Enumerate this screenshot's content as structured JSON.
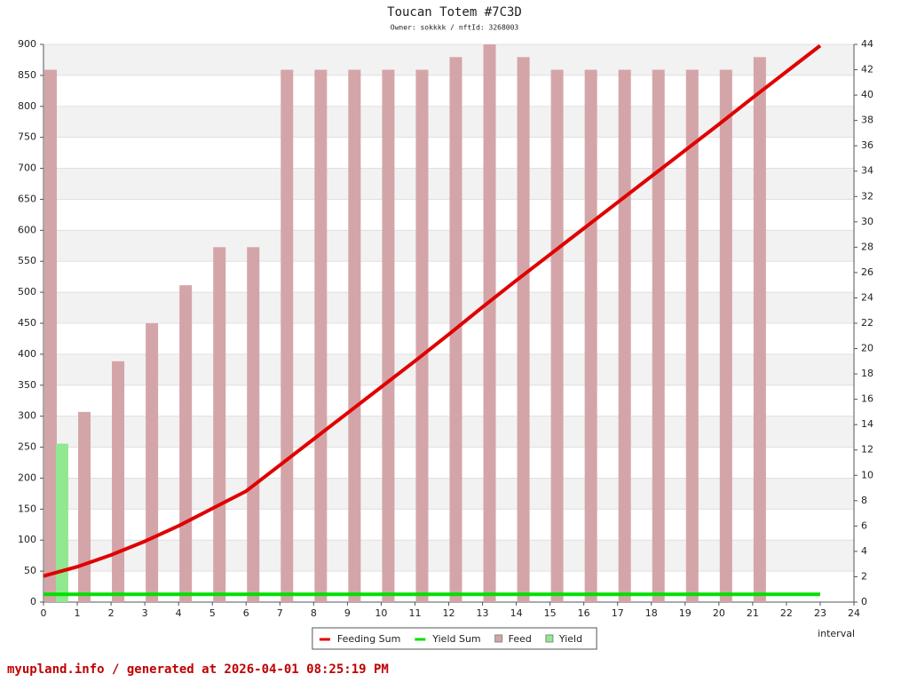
{
  "chart_data": {
    "type": "combo",
    "title": "Toucan Totem #7C3D",
    "subtitle": "Owner: sokkkk / nftId: 3268003",
    "footer": "myupland.info / generated at 2026-04-01 08:25:19 PM",
    "x_label": "interval",
    "x": [
      0,
      1,
      2,
      3,
      4,
      5,
      6,
      7,
      8,
      9,
      10,
      11,
      12,
      13,
      14,
      15,
      16,
      17,
      18,
      19,
      20,
      21,
      22,
      23
    ],
    "xlim": [
      0,
      24
    ],
    "xticks": [
      0,
      1,
      2,
      3,
      4,
      5,
      6,
      7,
      8,
      9,
      10,
      11,
      12,
      13,
      14,
      15,
      16,
      17,
      18,
      19,
      20,
      21,
      22,
      23,
      24
    ],
    "ylim": [
      0,
      900
    ],
    "yticks": [
      0,
      50,
      100,
      150,
      200,
      250,
      300,
      350,
      400,
      450,
      500,
      550,
      600,
      650,
      700,
      750,
      800,
      850,
      900
    ],
    "y2lim": [
      0,
      44
    ],
    "y2ticks": [
      0,
      2,
      4,
      6,
      8,
      10,
      12,
      14,
      16,
      18,
      20,
      22,
      24,
      26,
      28,
      30,
      32,
      34,
      36,
      38,
      40,
      42,
      44
    ],
    "grid": true,
    "legend": "bottom",
    "series": [
      {
        "name": "Feeding Sum",
        "type": "line",
        "color": "#e00000",
        "values": [
          42,
          57,
          76,
          98,
          123,
          151,
          179,
          221,
          263,
          305,
          347,
          389,
          432,
          476,
          519,
          561,
          603,
          645,
          687,
          729,
          771,
          814,
          856,
          898
        ]
      },
      {
        "name": "Yield Sum",
        "type": "line",
        "color": "#00e000",
        "values": [
          12.5,
          12.5,
          12.5,
          12.5,
          12.5,
          12.5,
          12.5,
          12.5,
          12.5,
          12.5,
          12.5,
          12.5,
          12.5,
          12.5,
          12.5,
          12.5,
          12.5,
          12.5,
          12.5,
          12.5,
          12.5,
          12.5,
          12.5,
          12.5
        ]
      },
      {
        "name": "Feed",
        "type": "bar",
        "axis": "y2",
        "color": "#d4a5a8",
        "values": [
          42,
          15,
          19,
          22,
          25,
          28,
          28,
          42,
          42,
          42,
          42,
          42,
          43,
          44,
          43,
          42,
          42,
          42,
          42,
          42,
          42,
          43,
          null,
          null
        ]
      },
      {
        "name": "Yield",
        "type": "bar",
        "axis": "y2",
        "color": "#90e890",
        "values": [
          12.5,
          null,
          null,
          null,
          null,
          null,
          null,
          null,
          null,
          null,
          null,
          null,
          null,
          null,
          null,
          null,
          null,
          null,
          null,
          null,
          null,
          null,
          null,
          null
        ]
      }
    ]
  }
}
